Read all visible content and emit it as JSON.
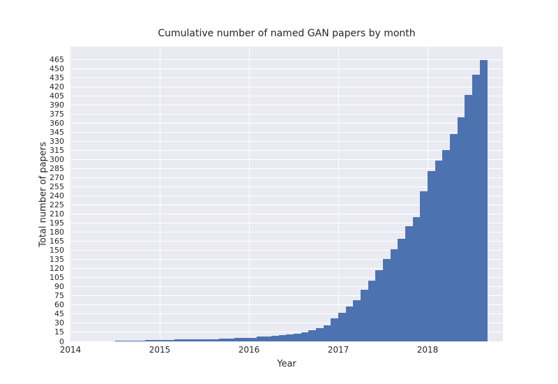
{
  "title": "Cumulative number of named GAN papers by month",
  "x_axis_title": "Year",
  "y_axis_title": "Total number of papers",
  "colors": {
    "bar": "#4c72b0",
    "plot_background": "#eaeaf2",
    "gridline": "#ffffff",
    "text": "#262626",
    "figure_background": "#ffffff"
  },
  "chart_data": {
    "type": "bar",
    "style": "seaborn-darkgrid",
    "title": "Cumulative number of named GAN papers by month",
    "xlabel": "Year",
    "ylabel": "Total number of papers",
    "grid": true,
    "legend": null,
    "x_tick_labels": [
      "2014",
      "2015",
      "2016",
      "2017",
      "2018"
    ],
    "y_tick_labels": [
      0,
      15,
      30,
      45,
      60,
      75,
      90,
      105,
      120,
      135,
      150,
      165,
      180,
      195,
      210,
      225,
      240,
      255,
      270,
      285,
      300,
      315,
      330,
      345,
      360,
      375,
      390,
      405,
      420,
      435,
      450,
      465
    ],
    "y_tick_step": 15,
    "ylim": [
      0,
      486
    ],
    "xlim": [
      "2014-01",
      "2018-11"
    ],
    "months": [
      "2014-07",
      "2014-08",
      "2014-09",
      "2014-10",
      "2014-11",
      "2014-12",
      "2015-01",
      "2015-02",
      "2015-03",
      "2015-04",
      "2015-05",
      "2015-06",
      "2015-07",
      "2015-08",
      "2015-09",
      "2015-10",
      "2015-11",
      "2015-12",
      "2016-01",
      "2016-02",
      "2016-03",
      "2016-04",
      "2016-05",
      "2016-06",
      "2016-07",
      "2016-08",
      "2016-09",
      "2016-10",
      "2016-11",
      "2016-12",
      "2017-01",
      "2017-02",
      "2017-03",
      "2017-04",
      "2017-05",
      "2017-06",
      "2017-07",
      "2017-08",
      "2017-09",
      "2017-10",
      "2017-11",
      "2017-12",
      "2018-01",
      "2018-02",
      "2018-03",
      "2018-04",
      "2018-05",
      "2018-06",
      "2018-07",
      "2018-08"
    ],
    "values": [
      1,
      1,
      1,
      1,
      2,
      2,
      2,
      2,
      3,
      3,
      3,
      4,
      4,
      4,
      5,
      5,
      6,
      6,
      6,
      8,
      8,
      9,
      10,
      11,
      13,
      15,
      18,
      22,
      27,
      38,
      47,
      58,
      68,
      85,
      100,
      118,
      136,
      152,
      170,
      190,
      205,
      248,
      281,
      298,
      316,
      342,
      370,
      407,
      440,
      465
    ]
  }
}
